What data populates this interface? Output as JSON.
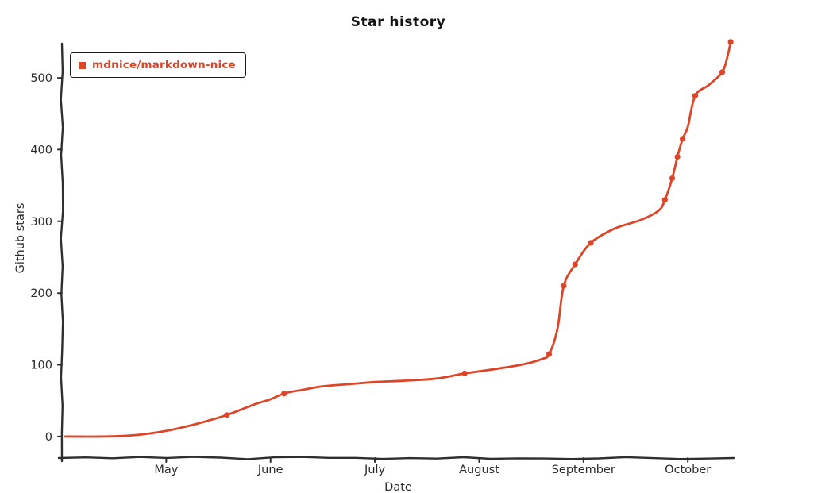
{
  "page": {
    "background": "#ffffff"
  },
  "chart_data": {
    "type": "line",
    "title": "Star history",
    "xlabel": "Date",
    "ylabel": "Github stars",
    "style": "hand-drawn-xkcd",
    "grid": false,
    "axis_color": "#2f2f2f",
    "text_color": "#2a2a2a",
    "legend": {
      "position": "top-left",
      "items": [
        {
          "label": "mdnice/markdown-nice",
          "color": "#dd4528"
        }
      ]
    },
    "x_tick_labels": [
      "May",
      "June",
      "July",
      "August",
      "September",
      "October"
    ],
    "x_tick_positions": [
      0,
      1,
      2,
      3,
      4,
      5
    ],
    "y_ticks": [
      0,
      100,
      200,
      300,
      400,
      500
    ],
    "xlim": [
      -1.0,
      5.44
    ],
    "ylim": [
      -30,
      551
    ],
    "series": [
      {
        "name": "mdnice/markdown-nice",
        "color": "#dd4528",
        "points": [
          {
            "t": -0.97,
            "stars": 0
          },
          {
            "t": -0.6,
            "stars": 0
          },
          {
            "t": -0.3,
            "stars": 2
          },
          {
            "t": 0.0,
            "stars": 8
          },
          {
            "t": 0.3,
            "stars": 18
          },
          {
            "t": 0.58,
            "stars": 30,
            "marker": true
          },
          {
            "t": 0.85,
            "stars": 45
          },
          {
            "t": 1.0,
            "stars": 52
          },
          {
            "t": 1.13,
            "stars": 60,
            "marker": true
          },
          {
            "t": 1.3,
            "stars": 65
          },
          {
            "t": 1.5,
            "stars": 70
          },
          {
            "t": 1.75,
            "stars": 73
          },
          {
            "t": 2.0,
            "stars": 76
          },
          {
            "t": 2.3,
            "stars": 78
          },
          {
            "t": 2.6,
            "stars": 81
          },
          {
            "t": 2.86,
            "stars": 88,
            "marker": true
          },
          {
            "t": 3.1,
            "stars": 93
          },
          {
            "t": 3.4,
            "stars": 100
          },
          {
            "t": 3.6,
            "stars": 108
          },
          {
            "t": 3.67,
            "stars": 115,
            "marker": true
          },
          {
            "t": 3.75,
            "stars": 150
          },
          {
            "t": 3.81,
            "stars": 210,
            "marker": true
          },
          {
            "t": 3.92,
            "stars": 240,
            "marker": true
          },
          {
            "t": 4.07,
            "stars": 270,
            "marker": true
          },
          {
            "t": 4.3,
            "stars": 290
          },
          {
            "t": 4.55,
            "stars": 302
          },
          {
            "t": 4.72,
            "stars": 315
          },
          {
            "t": 4.78,
            "stars": 330,
            "marker": true
          },
          {
            "t": 4.85,
            "stars": 360,
            "marker": true
          },
          {
            "t": 4.9,
            "stars": 390,
            "marker": true
          },
          {
            "t": 4.95,
            "stars": 415,
            "marker": true
          },
          {
            "t": 5.0,
            "stars": 432
          },
          {
            "t": 5.07,
            "stars": 475,
            "marker": true
          },
          {
            "t": 5.2,
            "stars": 490
          },
          {
            "t": 5.33,
            "stars": 508,
            "marker": true
          },
          {
            "t": 5.38,
            "stars": 530
          },
          {
            "t": 5.41,
            "stars": 550,
            "marker": true
          }
        ]
      }
    ]
  }
}
